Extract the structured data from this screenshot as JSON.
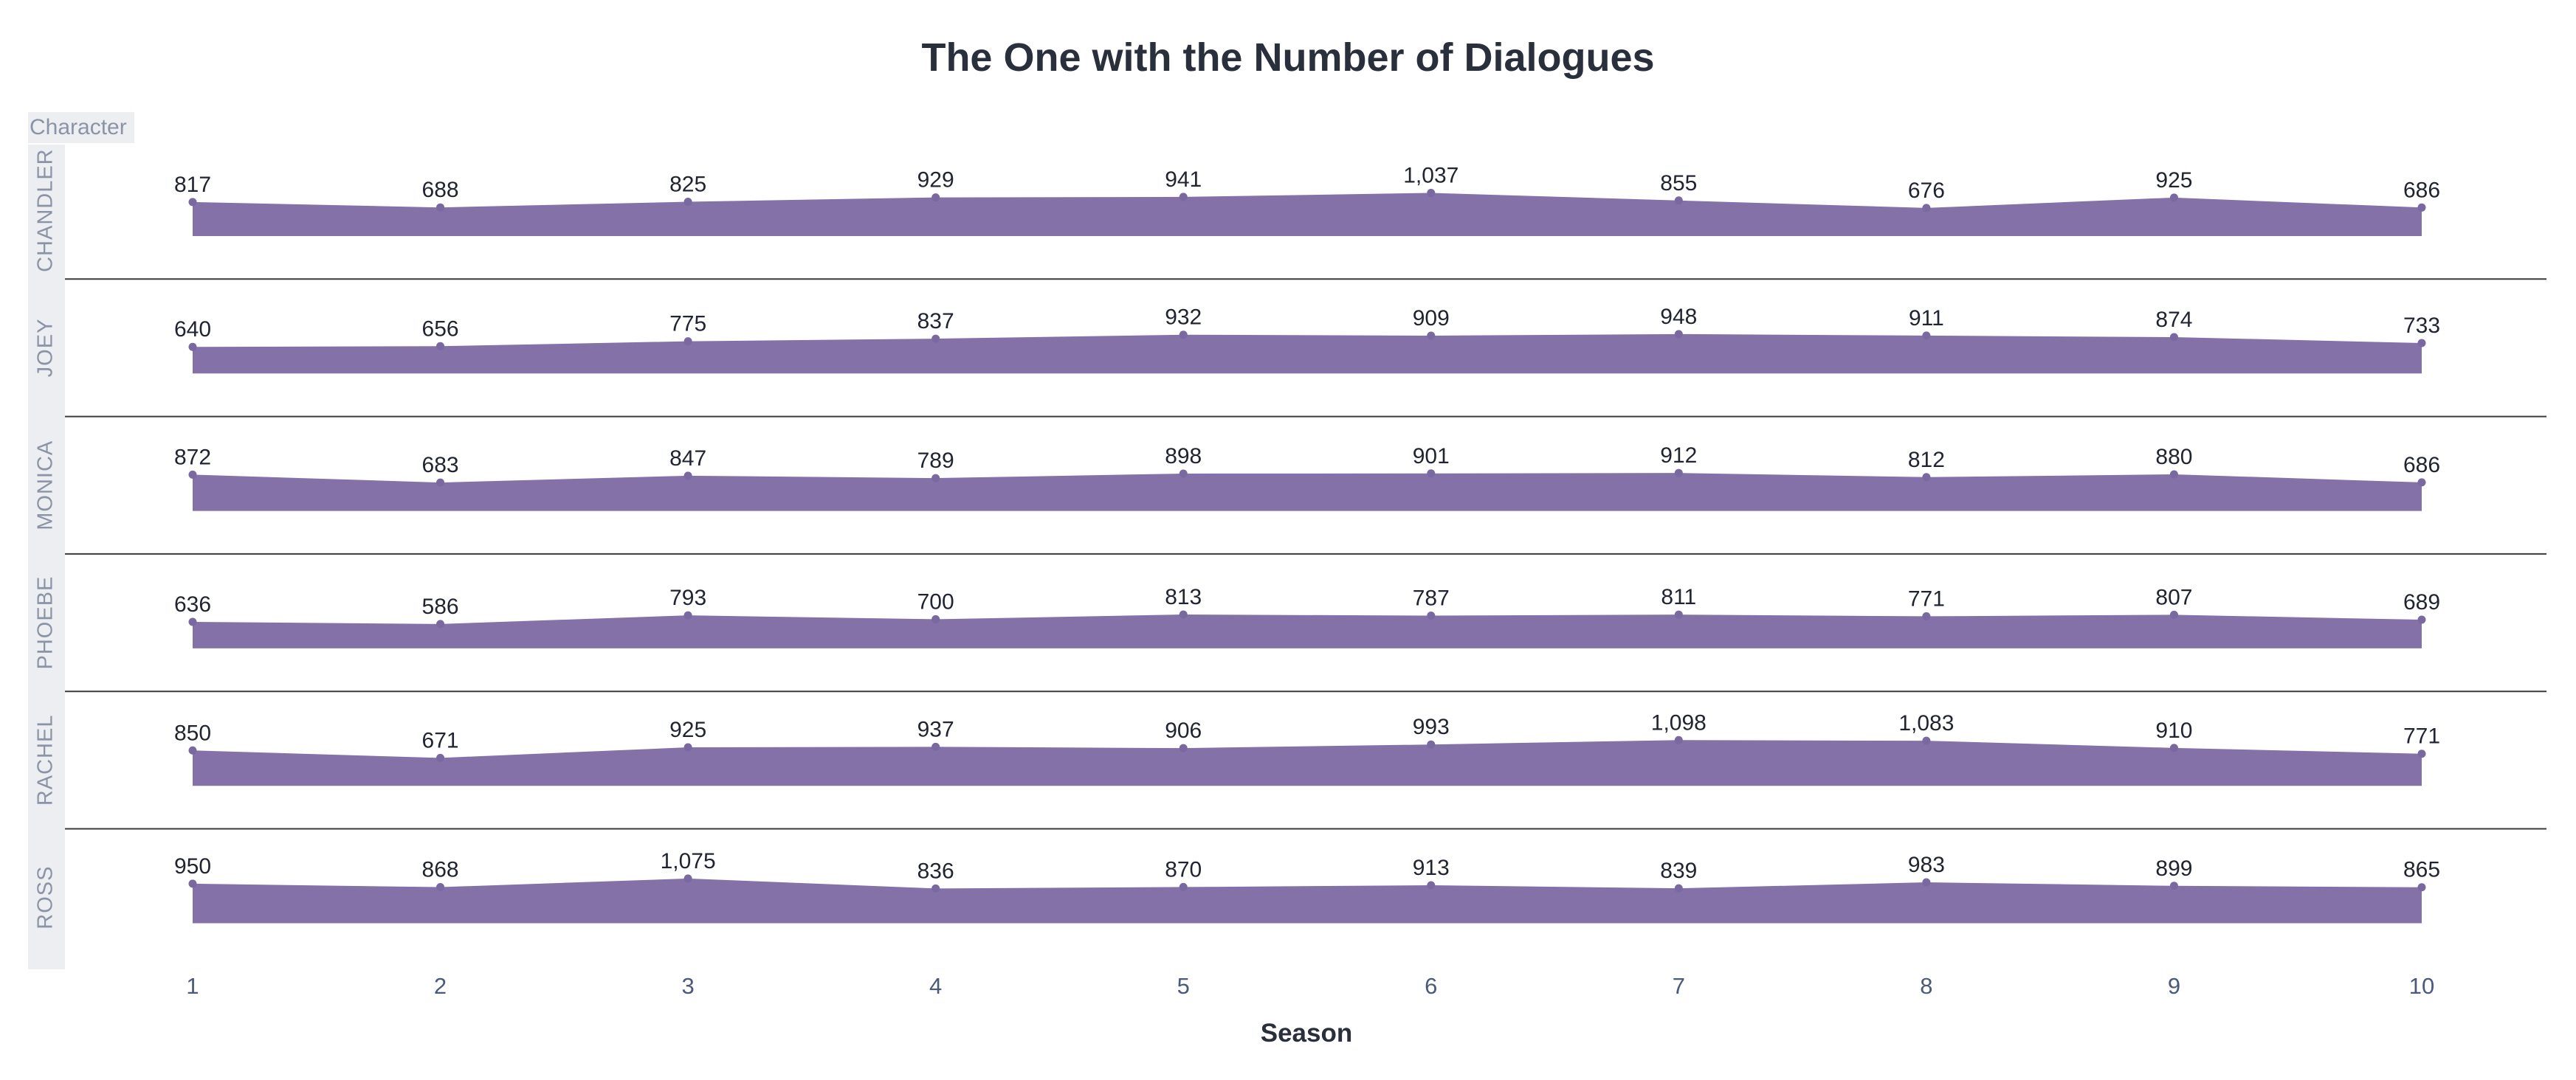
{
  "chart_data": {
    "type": "area",
    "title": "The One with the Number of Dialogues",
    "facet_header": "Character",
    "xlabel": "Season",
    "ylabel": "",
    "x": [
      1,
      2,
      3,
      4,
      5,
      6,
      7,
      8,
      9,
      10
    ],
    "x_tick_labels": [
      "1",
      "2",
      "3",
      "4",
      "5",
      "6",
      "7",
      "8",
      "9",
      "10"
    ],
    "series": [
      {
        "name": "CHANDLER",
        "values": [
          817,
          688,
          825,
          929,
          941,
          1037,
          855,
          676,
          925,
          686
        ],
        "labels": [
          "817",
          "688",
          "825",
          "929",
          "941",
          "1,037",
          "855",
          "676",
          "925",
          "686"
        ]
      },
      {
        "name": "JOEY",
        "values": [
          640,
          656,
          775,
          837,
          932,
          909,
          948,
          911,
          874,
          733
        ],
        "labels": [
          "640",
          "656",
          "775",
          "837",
          "932",
          "909",
          "948",
          "911",
          "874",
          "733"
        ]
      },
      {
        "name": "MONICA",
        "values": [
          872,
          683,
          847,
          789,
          898,
          901,
          912,
          812,
          880,
          686
        ],
        "labels": [
          "872",
          "683",
          "847",
          "789",
          "898",
          "901",
          "912",
          "812",
          "880",
          "686"
        ]
      },
      {
        "name": "PHOEBE",
        "values": [
          636,
          586,
          793,
          700,
          813,
          787,
          811,
          771,
          807,
          689
        ],
        "labels": [
          "636",
          "586",
          "793",
          "700",
          "813",
          "787",
          "811",
          "771",
          "807",
          "689"
        ]
      },
      {
        "name": "RACHEL",
        "values": [
          850,
          671,
          925,
          937,
          906,
          993,
          1098,
          1083,
          910,
          771
        ],
        "labels": [
          "850",
          "671",
          "925",
          "937",
          "906",
          "993",
          "1,098",
          "1,083",
          "910",
          "771"
        ]
      },
      {
        "name": "ROSS",
        "values": [
          950,
          868,
          1075,
          836,
          870,
          913,
          839,
          983,
          899,
          865
        ],
        "labels": [
          "950",
          "868",
          "1,075",
          "836",
          "870",
          "913",
          "839",
          "983",
          "899",
          "865"
        ]
      }
    ],
    "ylim": [
      0,
      1100
    ],
    "grid": false,
    "colors": {
      "area": "#8371a8",
      "point": "#7a68a0",
      "separator": "#3a3a3a",
      "header_bg": "#eceef1"
    }
  }
}
